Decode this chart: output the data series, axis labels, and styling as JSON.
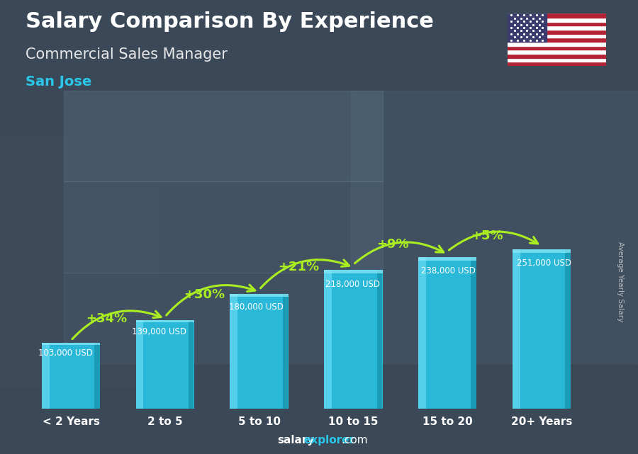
{
  "title": "Salary Comparison By Experience",
  "subtitle": "Commercial Sales Manager",
  "city": "San Jose",
  "ylabel": "Average Yearly Salary",
  "xlabel_categories": [
    "< 2 Years",
    "2 to 5",
    "5 to 10",
    "10 to 15",
    "15 to 20",
    "20+ Years"
  ],
  "values": [
    103000,
    139000,
    180000,
    218000,
    238000,
    251000
  ],
  "value_labels": [
    "103,000 USD",
    "139,000 USD",
    "180,000 USD",
    "218,000 USD",
    "238,000 USD",
    "251,000 USD"
  ],
  "pct_changes": [
    "+34%",
    "+30%",
    "+21%",
    "+9%",
    "+5%"
  ],
  "bar_color_main": "#29b8d8",
  "bar_color_light": "#5dd5ee",
  "bar_color_dark": "#1590a8",
  "bar_top_color": "#88e8f8",
  "title_color": "#ffffff",
  "subtitle_color": "#e8e8e8",
  "city_color": "#29c8e8",
  "value_label_color": "#ffffff",
  "pct_color": "#aaee22",
  "footer_salary_color": "#ffffff",
  "footer_explorer_color": "#29c8e8",
  "bg_color": "#3a4a58",
  "ylabel_color": "#cccccc"
}
